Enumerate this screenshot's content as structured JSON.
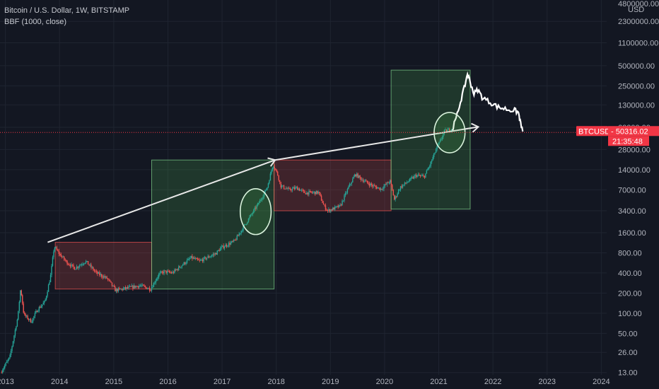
{
  "header": {
    "title": "Bitcoin / U.S. Dollar, 1W, BITSTAMP",
    "indicator": "BBF (1000, close)"
  },
  "price_badge": {
    "symbol": "BTCUSD",
    "price": "50316.02",
    "countdown": "21:35:48",
    "color": "#f23645"
  },
  "colors": {
    "background": "#131722",
    "grid": "#1f2430",
    "up_candle": "#26a69a",
    "down_candle": "#ef5350",
    "green_zone_fill": "rgba(76,175,80,0.22)",
    "green_zone_stroke": "#7fd08a",
    "red_zone_fill": "rgba(239,83,80,0.20)",
    "red_zone_stroke": "#ef5350",
    "projection": "#ffffff",
    "price_line": "#f23645"
  },
  "chart_data": {
    "type": "candlestick",
    "title": "Bitcoin / U.S. Dollar, 1W, BITSTAMP",
    "xlabel": "",
    "ylabel": "",
    "y_unit": "USD",
    "y_scale": "log",
    "ylim": [
      12,
      4800000
    ],
    "xlim": [
      2012.9,
      2024.1
    ],
    "grid": true,
    "x_ticks": [
      "2013",
      "2014",
      "2015",
      "2016",
      "2017",
      "2018",
      "2019",
      "2020",
      "2021",
      "2022",
      "2023",
      "2024"
    ],
    "y_ticks": [
      {
        "value": 4800000,
        "label": "4800000.00"
      },
      {
        "value": 2300000,
        "label": "2300000.00"
      },
      {
        "value": 1100000,
        "label": "1100000.00"
      },
      {
        "value": 500000,
        "label": "500000.00"
      },
      {
        "value": 250000,
        "label": "250000.00"
      },
      {
        "value": 130000,
        "label": "130000.00"
      },
      {
        "value": 60000,
        "label": "60000.00"
      },
      {
        "value": 28000,
        "label": "28000.00"
      },
      {
        "value": 14000,
        "label": "14000.00"
      },
      {
        "value": 7000,
        "label": "7000.00"
      },
      {
        "value": 3400,
        "label": "3400.00"
      },
      {
        "value": 1600,
        "label": "1600.00"
      },
      {
        "value": 800,
        "label": "800.00"
      },
      {
        "value": 400,
        "label": "400.00"
      },
      {
        "value": 200,
        "label": "200.00"
      },
      {
        "value": 100,
        "label": "100.00"
      },
      {
        "value": 50,
        "label": "50.00"
      },
      {
        "value": 26,
        "label": "26.00"
      },
      {
        "value": 13,
        "label": "13.00"
      }
    ],
    "price_anchors": [
      [
        2012.93,
        13
      ],
      [
        2013.1,
        22
      ],
      [
        2013.25,
        90
      ],
      [
        2013.3,
        240
      ],
      [
        2013.36,
        95
      ],
      [
        2013.5,
        75
      ],
      [
        2013.6,
        110
      ],
      [
        2013.75,
        150
      ],
      [
        2013.85,
        350
      ],
      [
        2013.92,
        1000
      ],
      [
        2014.0,
        800
      ],
      [
        2014.15,
        580
      ],
      [
        2014.3,
        470
      ],
      [
        2014.5,
        600
      ],
      [
        2014.7,
        400
      ],
      [
        2014.9,
        330
      ],
      [
        2015.05,
        220
      ],
      [
        2015.3,
        240
      ],
      [
        2015.5,
        260
      ],
      [
        2015.7,
        230
      ],
      [
        2015.85,
        380
      ],
      [
        2015.95,
        420
      ],
      [
        2016.1,
        400
      ],
      [
        2016.45,
        680
      ],
      [
        2016.6,
        600
      ],
      [
        2016.9,
        780
      ],
      [
        2017.0,
        950
      ],
      [
        2017.25,
        1200
      ],
      [
        2017.5,
        2500
      ],
      [
        2017.7,
        4500
      ],
      [
        2017.85,
        7500
      ],
      [
        2017.96,
        17000
      ],
      [
        2018.05,
        11500
      ],
      [
        2018.1,
        8000
      ],
      [
        2018.25,
        7000
      ],
      [
        2018.4,
        7500
      ],
      [
        2018.55,
        6300
      ],
      [
        2018.8,
        6400
      ],
      [
        2018.9,
        4000
      ],
      [
        2018.97,
        3400
      ],
      [
        2019.2,
        4000
      ],
      [
        2019.35,
        7500
      ],
      [
        2019.48,
        12000
      ],
      [
        2019.6,
        10000
      ],
      [
        2019.8,
        8000
      ],
      [
        2019.95,
        7200
      ],
      [
        2020.12,
        9500
      ],
      [
        2020.2,
        5000
      ],
      [
        2020.3,
        7500
      ],
      [
        2020.45,
        9300
      ],
      [
        2020.6,
        11500
      ],
      [
        2020.75,
        11000
      ],
      [
        2020.85,
        16000
      ],
      [
        2020.97,
        28000
      ],
      [
        2021.05,
        38000
      ],
      [
        2021.12,
        52000
      ],
      [
        2021.25,
        57000
      ]
    ],
    "projection_path": [
      [
        2021.25,
        57000
      ],
      [
        2021.32,
        80000
      ],
      [
        2021.4,
        145000
      ],
      [
        2021.47,
        230000
      ],
      [
        2021.53,
        380000
      ],
      [
        2021.58,
        290000
      ],
      [
        2021.65,
        190000
      ],
      [
        2021.72,
        220000
      ],
      [
        2021.8,
        170000
      ],
      [
        2021.9,
        150000
      ],
      [
        2022.0,
        135000
      ],
      [
        2022.1,
        120000
      ],
      [
        2022.2,
        115000
      ],
      [
        2022.3,
        110000
      ],
      [
        2022.4,
        108000
      ],
      [
        2022.47,
        100000
      ],
      [
        2022.5,
        75000
      ],
      [
        2022.55,
        52000
      ]
    ],
    "zones": [
      {
        "color": "red",
        "x0": 2013.92,
        "x1": 2015.7,
        "y0": 230,
        "y1": 1150
      },
      {
        "color": "green",
        "x0": 2015.7,
        "x1": 2017.96,
        "y0": 230,
        "y1": 19500
      },
      {
        "color": "red",
        "x0": 2017.96,
        "x1": 2020.12,
        "y0": 3400,
        "y1": 19500
      },
      {
        "color": "green",
        "x0": 2020.12,
        "x1": 2021.58,
        "y0": 3600,
        "y1": 430000
      }
    ],
    "arrows": [
      {
        "from": [
          2013.78,
          1150
        ],
        "to": [
          2017.98,
          19500
        ]
      },
      {
        "from": [
          2017.98,
          19500
        ],
        "to": [
          2021.73,
          61000
        ]
      }
    ],
    "ellipses": [
      {
        "cx": 2017.62,
        "cy": 3300,
        "rx_years": 0.38,
        "ry_factor": 2.2
      },
      {
        "cx": 2021.2,
        "cy": 50000,
        "rx_years": 0.38,
        "ry_factor": 2.0
      }
    ],
    "current_price": 50316.02,
    "last_price_label": "50316.02"
  }
}
